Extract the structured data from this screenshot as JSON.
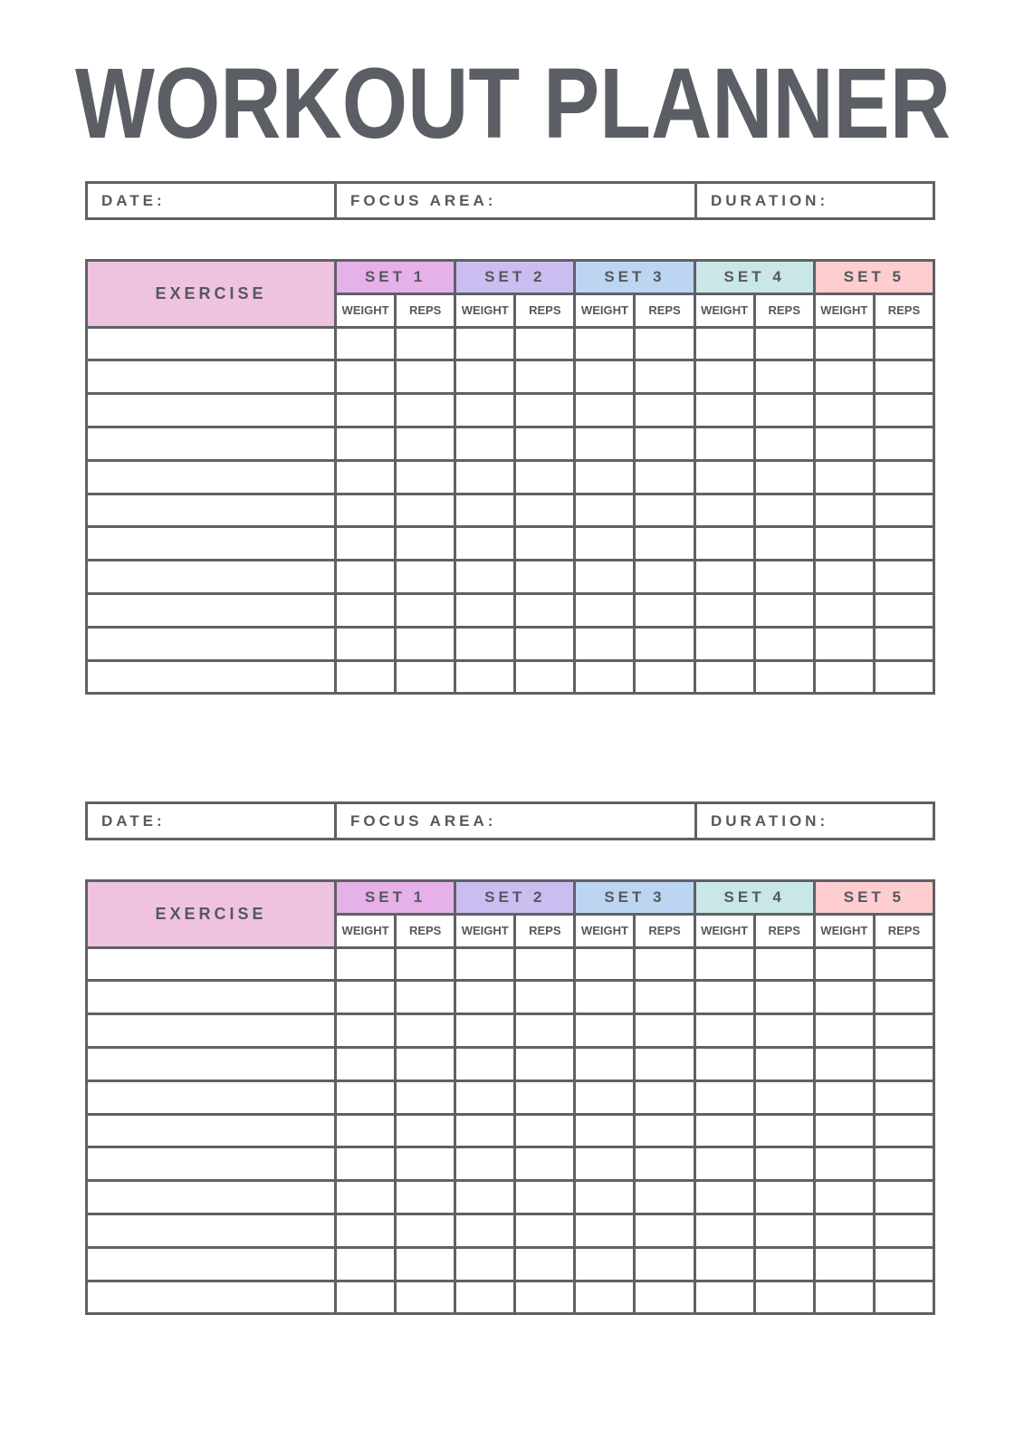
{
  "title": "WORKOUT PLANNER",
  "colors": {
    "text": "#55585e",
    "border": "#5f6166",
    "exercise_header": "#efc3e0",
    "sets": [
      "#e6b0e8",
      "#cbbdf0",
      "#bcd6f2",
      "#c9e7e6",
      "#fdcdd0"
    ]
  },
  "sections": [
    {
      "info": {
        "date_label": "DATE:",
        "focus_label": "FOCUS AREA:",
        "duration_label": "DURATION:"
      },
      "table": {
        "exercise_label": "EXERCISE",
        "sets": [
          "SET 1",
          "SET 2",
          "SET 3",
          "SET 4",
          "SET 5"
        ],
        "sub_columns": [
          "WEIGHT",
          "REPS"
        ]
      }
    },
    {
      "info": {
        "date_label": "DATE:",
        "focus_label": "FOCUS AREA:",
        "duration_label": "DURATION:"
      },
      "table": {
        "exercise_label": "EXERCISE",
        "sets": [
          "SET 1",
          "SET 2",
          "SET 3",
          "SET 4",
          "SET 5"
        ],
        "sub_columns": [
          "WEIGHT",
          "REPS"
        ]
      }
    }
  ]
}
